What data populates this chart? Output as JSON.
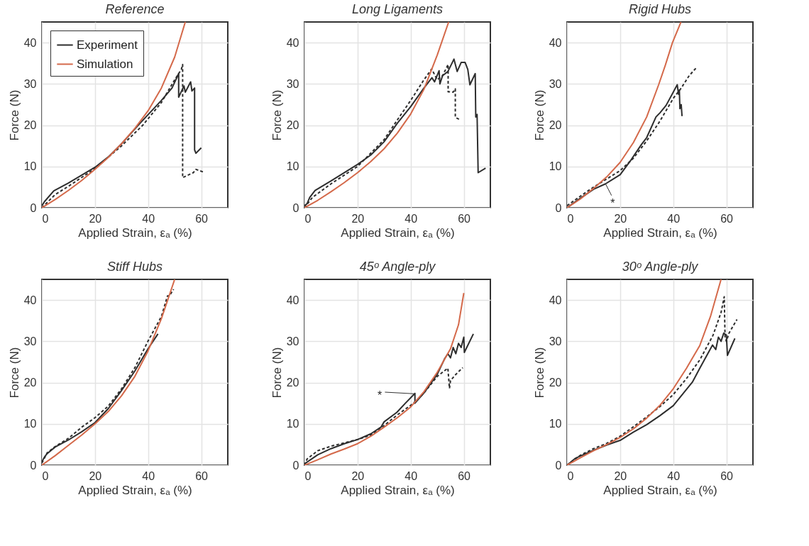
{
  "chart_data": [
    {
      "type": "line",
      "title": "Reference",
      "xlabel": "Applied Strain, εₐ (%)",
      "ylabel": "Force (N)",
      "xlim": [
        0,
        70
      ],
      "ylim": [
        0,
        45
      ],
      "xticks": [
        0,
        20,
        40,
        60
      ],
      "yticks": [
        0,
        10,
        20,
        30,
        40
      ],
      "grid": true,
      "legend": "top left",
      "series": [
        {
          "name": "Experiment",
          "color": "#2d2d2d",
          "line_style": "solid",
          "x": [
            0,
            1,
            4.5,
            10,
            20,
            25,
            30,
            37,
            45,
            47,
            49,
            51.5,
            51.5,
            53.5,
            54,
            56,
            56.5,
            57.5,
            57.5,
            58,
            60
          ],
          "values": [
            0.5,
            1.5,
            4.1,
            6,
            9.8,
            12.3,
            15.5,
            20.5,
            26,
            27.5,
            29,
            32.5,
            26.8,
            29.5,
            28,
            30.5,
            28.3,
            29,
            14,
            13.2,
            14.5
          ]
        },
        {
          "color": "#2d2d2d",
          "line_style": "dashed",
          "x": [
            0,
            5,
            10,
            20,
            30,
            38,
            45,
            50,
            52.5,
            53,
            53,
            57,
            58,
            61
          ],
          "values": [
            0,
            3.2,
            5.2,
            9.5,
            15,
            20,
            25.5,
            31,
            33.5,
            34.7,
            7.3,
            8.5,
            9.3,
            8.6
          ]
        },
        {
          "name": "Simulation",
          "color": "#d4694a",
          "line_style": "solid",
          "x": [
            0,
            5,
            10,
            15,
            20,
            25,
            30,
            35,
            40,
            45,
            50,
            54
          ],
          "values": [
            0,
            2,
            4.2,
            6.6,
            9.3,
            12.2,
            15.5,
            19.2,
            23.5,
            29,
            36.5,
            45
          ]
        }
      ]
    },
    {
      "type": "line",
      "title": "Long Ligaments",
      "xlabel": "Applied Strain, εₐ (%)",
      "ylabel": "Force (N)",
      "xlim": [
        0,
        70
      ],
      "ylim": [
        0,
        45
      ],
      "xticks": [
        0,
        20,
        40,
        60
      ],
      "yticks": [
        0,
        10,
        20,
        30,
        40
      ],
      "grid": true,
      "series": [
        {
          "color": "#2d2d2d",
          "line_style": "solid",
          "x": [
            0,
            1,
            2,
            4,
            10,
            20,
            25,
            30,
            35,
            40,
            45,
            48,
            49,
            50.7,
            51,
            52,
            54,
            56.3,
            57.5,
            59,
            60.5,
            61.5,
            62.3,
            64.3,
            64.5,
            65,
            65.4,
            68.2
          ],
          "values": [
            0.5,
            1,
            2.5,
            4.2,
            6.5,
            10.5,
            12.8,
            16,
            20.5,
            24.5,
            29,
            31.5,
            30.5,
            33.2,
            30,
            32,
            33,
            36,
            33,
            35.2,
            35.2,
            33.5,
            29.8,
            32.5,
            22,
            22.6,
            8.5,
            9.6
          ]
        },
        {
          "color": "#2d2d2d",
          "line_style": "dashed",
          "x": [
            0,
            3,
            10,
            20,
            30,
            35,
            40,
            45,
            47.9,
            50,
            52,
            54.1,
            54.1,
            56,
            56.8,
            56.8,
            58.7
          ],
          "values": [
            0,
            2.5,
            5.8,
            10,
            16.5,
            21.3,
            26,
            31,
            33.6,
            31,
            32,
            34.7,
            28.1,
            28,
            28.8,
            21.9,
            21.3
          ]
        },
        {
          "color": "#d4694a",
          "line_style": "solid",
          "x": [
            0,
            5,
            10,
            15,
            20,
            25,
            30,
            35,
            40,
            45,
            50,
            54.3
          ],
          "values": [
            0,
            1.8,
            3.9,
            6.1,
            8.5,
            11.2,
            14.3,
            18.1,
            22.7,
            28.7,
            37,
            45
          ]
        }
      ]
    },
    {
      "type": "line",
      "title": "Rigid Hubs",
      "xlabel": "Applied Strain, εₐ (%)",
      "ylabel": "Force (N)",
      "xlim": [
        0,
        70
      ],
      "ylim": [
        0,
        45
      ],
      "xticks": [
        0,
        20,
        40,
        60
      ],
      "yticks": [
        0,
        10,
        20,
        30,
        40
      ],
      "grid": true,
      "annotations": [
        {
          "text": "*",
          "x": 14.5,
          "y": 5.8
        }
      ],
      "series": [
        {
          "color": "#2d2d2d",
          "line_style": "solid",
          "x": [
            0,
            5,
            10,
            14.5,
            20,
            24,
            28,
            30,
            33.5,
            35,
            37.3,
            40,
            41.5,
            42,
            42.3,
            42.5,
            43,
            43.3
          ],
          "values": [
            0,
            2.3,
            4.5,
            5.8,
            8,
            11.5,
            15.3,
            17,
            22,
            23,
            24.8,
            28,
            29.8,
            27.5,
            28.5,
            24,
            25,
            22.2
          ]
        },
        {
          "color": "#2d2d2d",
          "line_style": "dashed",
          "x": [
            0,
            5,
            10,
            15,
            20,
            25,
            30,
            35,
            40,
            43,
            46,
            48.8
          ],
          "values": [
            0.5,
            2.8,
            5,
            7,
            9,
            12,
            16.2,
            21,
            26.5,
            29,
            32,
            34
          ]
        },
        {
          "color": "#d4694a",
          "line_style": "solid",
          "x": [
            0,
            5,
            10,
            15,
            20,
            25,
            30,
            34.5,
            37,
            39.7,
            42.9
          ],
          "values": [
            0,
            2.1,
            4.7,
            7.5,
            11,
            15.8,
            22,
            29.8,
            34.5,
            40,
            45
          ]
        }
      ]
    },
    {
      "type": "line",
      "title": "Stiff Hubs",
      "xlabel": "Applied Strain, εₐ (%)",
      "ylabel": "Force (N)",
      "xlim": [
        0,
        70
      ],
      "ylim": [
        0,
        45
      ],
      "xticks": [
        0,
        20,
        40,
        60
      ],
      "yticks": [
        0,
        10,
        20,
        30,
        40
      ],
      "grid": true,
      "series": [
        {
          "color": "#2d2d2d",
          "line_style": "solid",
          "x": [
            0,
            1,
            2,
            5,
            10,
            15,
            20,
            25,
            30,
            35,
            40,
            43.7
          ],
          "values": [
            0.8,
            2,
            2.8,
            4.4,
            6.1,
            8.1,
            10.3,
            13.7,
            18.1,
            22.8,
            28.2,
            31.8
          ]
        },
        {
          "color": "#2d2d2d",
          "line_style": "dashed",
          "x": [
            0,
            2,
            5,
            10,
            15,
            20,
            25,
            30,
            35,
            40,
            45,
            47.3,
            48,
            49.6
          ],
          "values": [
            0.5,
            3,
            4.5,
            6.5,
            9.2,
            11.5,
            14.3,
            18.5,
            23.6,
            30.1,
            36,
            41,
            41,
            42.6
          ]
        },
        {
          "color": "#d4694a",
          "line_style": "solid",
          "x": [
            0,
            5,
            10,
            15,
            20,
            25,
            30,
            35,
            40,
            45,
            50
          ],
          "values": [
            0,
            2.3,
            4.8,
            7.3,
            10,
            13,
            16.8,
            21.5,
            27.7,
            35.5,
            45
          ]
        }
      ]
    },
    {
      "type": "line",
      "title": "45ᵒ Angle-ply",
      "xlabel": "Applied Strain, εₐ (%)",
      "ylabel": "Force (N)",
      "xlim": [
        0,
        70
      ],
      "ylim": [
        0,
        45
      ],
      "xticks": [
        0,
        20,
        40,
        60
      ],
      "yticks": [
        0,
        10,
        20,
        30,
        40
      ],
      "grid": true,
      "annotations": [
        {
          "text": "*",
          "x": 41.2,
          "y": 17.3
        }
      ],
      "series": [
        {
          "color": "#2d2d2d",
          "line_style": "solid",
          "x": [
            0,
            5,
            10,
            15,
            20,
            25,
            28.8,
            30,
            34.8,
            38,
            41.6,
            41.6,
            45,
            50,
            52.8,
            54,
            55,
            56,
            57,
            58,
            59,
            60,
            60.2,
            63.6
          ],
          "values": [
            0.3,
            2.5,
            4,
            5.2,
            6.2,
            7.6,
            9.2,
            10.5,
            12.8,
            15,
            17.4,
            15,
            17.5,
            22,
            25.8,
            27,
            26,
            28.5,
            27,
            29.5,
            28.5,
            31,
            27.3,
            31.8
          ]
        },
        {
          "color": "#2d2d2d",
          "line_style": "dashed",
          "x": [
            0,
            1,
            5,
            10,
            15,
            20,
            25,
            30,
            35,
            40,
            42,
            45,
            50,
            53.2,
            54,
            54.6,
            55,
            57,
            59.6
          ],
          "values": [
            0,
            1.5,
            3.5,
            4.6,
            5.4,
            6.2,
            7.3,
            9.6,
            12.2,
            14.5,
            15.5,
            17.5,
            21.5,
            23.1,
            23.5,
            18.6,
            20.5,
            22,
            23.6
          ]
        },
        {
          "color": "#d4694a",
          "line_style": "solid",
          "x": [
            0,
            5,
            10,
            15,
            20,
            25,
            30,
            35,
            40,
            45,
            50,
            55,
            58,
            60
          ],
          "values": [
            0,
            1.3,
            2.7,
            3.9,
            5.2,
            7,
            9.2,
            11.5,
            14.1,
            17.8,
            22.5,
            28.2,
            34,
            41.7
          ]
        }
      ]
    },
    {
      "type": "line",
      "title": "30ᵒ Angle-ply",
      "xlabel": "Applied Strain, εₐ (%)",
      "ylabel": "Force (N)",
      "xlim": [
        0,
        70
      ],
      "ylim": [
        0,
        45
      ],
      "xticks": [
        0,
        20,
        40,
        60
      ],
      "yticks": [
        0,
        10,
        20,
        30,
        40
      ],
      "grid": true,
      "series": [
        {
          "color": "#2d2d2d",
          "line_style": "solid",
          "x": [
            0,
            3,
            5,
            10,
            15,
            20,
            25,
            30,
            35,
            40,
            47.2,
            50,
            53,
            54.8,
            56,
            57,
            58,
            59,
            60,
            60.4,
            63.2
          ],
          "values": [
            0,
            1.6,
            2.2,
            3.6,
            4.9,
            6,
            8,
            9.8,
            12,
            14.4,
            20.1,
            23.5,
            27,
            29.1,
            28,
            31,
            30,
            32,
            31.5,
            26.6,
            30.7
          ]
        },
        {
          "color": "#2d2d2d",
          "line_style": "dashed",
          "x": [
            0,
            5,
            10,
            15,
            20,
            25,
            30,
            35,
            40,
            45,
            50,
            55,
            58,
            59.2,
            59.5,
            60,
            61,
            64
          ],
          "values": [
            0,
            2.4,
            4,
            5.3,
            7,
            9.3,
            11.7,
            14.2,
            17.1,
            21,
            25.5,
            31.5,
            37,
            40.8,
            31,
            30,
            32,
            35.3
          ]
        },
        {
          "color": "#d4694a",
          "line_style": "solid",
          "x": [
            0,
            5,
            10,
            15,
            20,
            25,
            30,
            35,
            40,
            45,
            50,
            54,
            58
          ],
          "values": [
            0,
            1.8,
            3.5,
            5,
            6.7,
            8.8,
            11.4,
            14.5,
            18.5,
            23.5,
            29,
            36,
            45
          ]
        }
      ]
    }
  ]
}
